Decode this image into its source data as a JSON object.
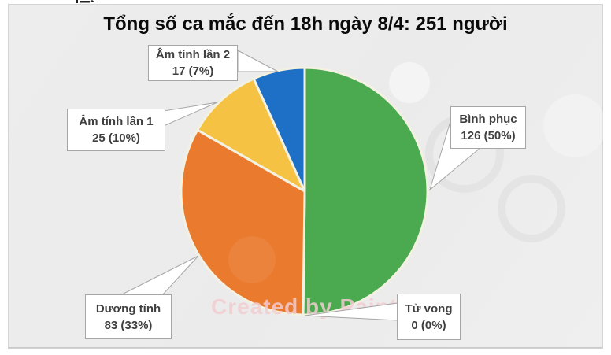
{
  "page_title": "Tổng số ca mắc đến 18h ngày 8/4: 251 người",
  "watermark": {
    "text": "Created by Paint S",
    "color": "#F2CDD1"
  },
  "chart_data": {
    "type": "pie",
    "title": "Tổng số ca mắc đến 18h ngày 8/4: 251 người",
    "total": 251,
    "categories": [
      "Bình phục",
      "Tử vong",
      "Dương tính",
      "Âm tính lần 1",
      "Âm tính lần 2"
    ],
    "values": [
      126,
      0,
      83,
      25,
      17
    ],
    "percent_labels": [
      "50%",
      "0%",
      "33%",
      "10%",
      "7%"
    ],
    "colors": [
      "#4BA950",
      null,
      "#EA7A2E",
      "#F6C243",
      "#1D70C5"
    ],
    "slice_border_color": "#F2F1E2",
    "start_angle_deg": 0,
    "direction": "clockwise",
    "legend": "none",
    "label_style": "callout"
  },
  "callouts": [
    {
      "id": "am-tinh-lan-2",
      "line1": "Âm tính lần 2",
      "line2": "17 (7%)"
    },
    {
      "id": "am-tinh-lan-1",
      "line1": "Âm tính lần 1",
      "line2": "25 (10%)"
    },
    {
      "id": "binh-phuc",
      "line1": "Bình phục",
      "line2": "126 (50%)"
    },
    {
      "id": "duong-tinh",
      "line1": "Dương tính",
      "line2": "83 (33%)"
    },
    {
      "id": "tu-vong",
      "line1": "Tử vong",
      "line2": "0 (0%)"
    }
  ],
  "theme": {
    "panel_bg": "#ECECEC",
    "box_border": "#A6A6A6",
    "label_text": "#3F3F3F",
    "title_text": "#0A0A0A"
  }
}
